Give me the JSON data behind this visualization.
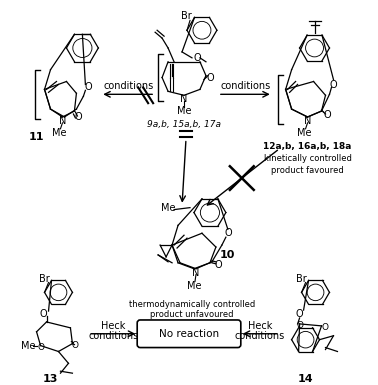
{
  "background_color": "#ffffff",
  "figsize": [
    3.78,
    3.85
  ],
  "dpi": 100,
  "text_color": "#000000",
  "box_color": "#ffffff",
  "box_edge_color": "#000000",
  "label_11": "11",
  "label_me_11": "Me",
  "label_9ab": "9a,b, 15a,b, 17a",
  "label_me_9": "Me",
  "label_12ab": "12a,b, 16a,b, 18a",
  "label_kinetically": "kinetically controlled",
  "label_product_fav": "product favoured",
  "label_10": "10",
  "label_me_10a": "Me",
  "label_me_10b": "Me",
  "label_thermo": "thermodynamically controlled",
  "label_product_unfav": "product unfavoured",
  "label_conditions": "conditions",
  "label_13": "13",
  "label_14": "14",
  "label_heck": "Heck",
  "label_conditions2": "conditions",
  "label_no_reaction": "No reaction",
  "label_br": "Br",
  "label_n": "N",
  "label_o": "O",
  "label_me": "Me"
}
